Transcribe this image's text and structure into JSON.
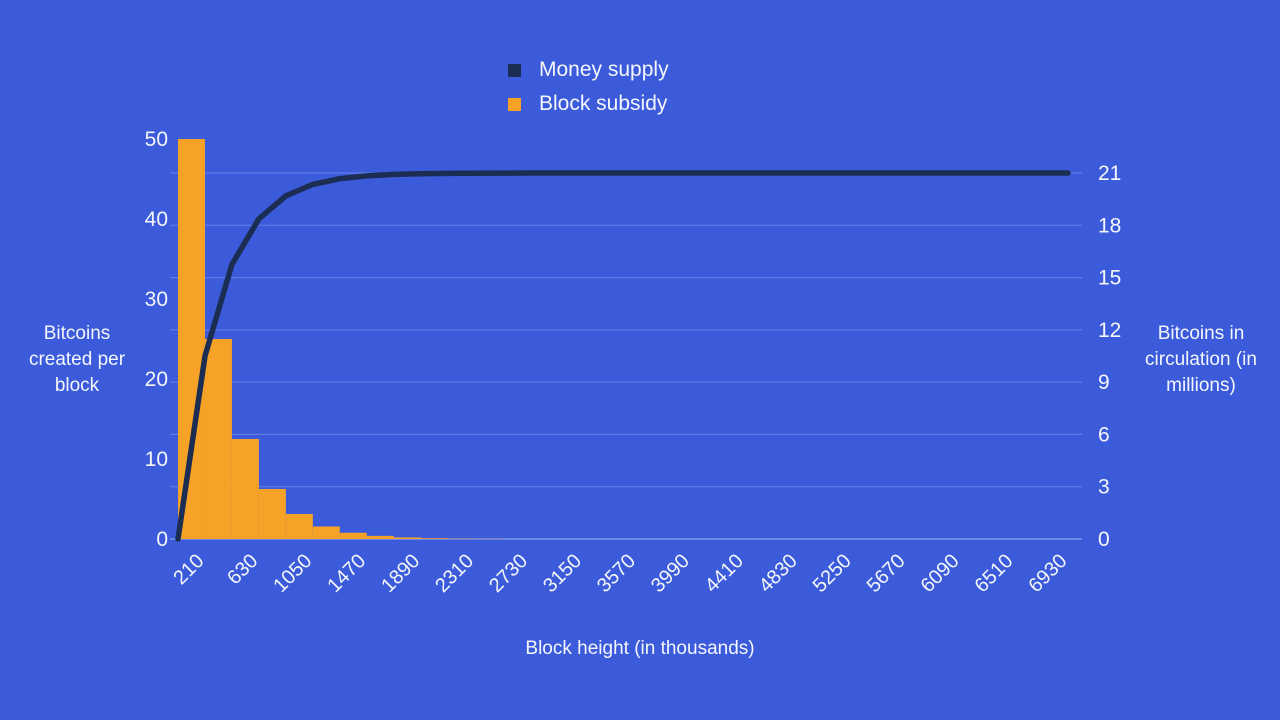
{
  "page": {
    "background": "#3B5BDB",
    "text_color": "#F4F6FA"
  },
  "legend": {
    "items": [
      {
        "label": "Money supply",
        "color": "#1B2D52"
      },
      {
        "label": "Block subsidy",
        "color": "#F6A226"
      }
    ]
  },
  "axes": {
    "left_title": "Bitcoins created per block",
    "right_title": "Bitcoins in circulation (in millions)",
    "x_title": "Block height (in thousands)"
  },
  "chart_data": {
    "type": "combo",
    "title": "",
    "x_axis": {
      "label": "Block height (in thousands)",
      "range": [
        0,
        6930
      ],
      "ticks": [
        210,
        630,
        1050,
        1470,
        1890,
        2310,
        2730,
        3150,
        3570,
        3990,
        4410,
        4830,
        5250,
        5670,
        6090,
        6510,
        6930
      ]
    },
    "left_axis": {
      "label": "Bitcoins created per block",
      "range": [
        0,
        50
      ],
      "ticks": [
        0,
        10,
        20,
        30,
        40,
        50
      ]
    },
    "right_axis": {
      "label": "Bitcoins in circulation (in millions)",
      "range": [
        0,
        21
      ],
      "ticks": [
        0,
        3,
        6,
        9,
        12,
        15,
        18,
        21
      ]
    },
    "grid": {
      "horizontal": true,
      "color": "rgba(244,246,250,0.25)",
      "baseline_color": "rgba(244,246,250,0.55)"
    },
    "legend_position": "top-center",
    "series": [
      {
        "name": "Block subsidy",
        "type": "bar",
        "axis": "left",
        "color": "#F6A226",
        "era_width_thousands": 210,
        "values": [
          50,
          25,
          12.5,
          6.25,
          3.125,
          1.5625,
          0.78125,
          0.390625,
          0.195313,
          0.097656,
          0.048828,
          0.024414,
          0.012207,
          0.006104,
          0.003052,
          0.001526,
          0.000763,
          0.000381,
          0.000191,
          9.5e-05,
          4.8e-05,
          2.4e-05,
          1.2e-05,
          6e-06,
          3e-06,
          2e-06,
          1e-06,
          0,
          0,
          0,
          0,
          0,
          0
        ]
      },
      {
        "name": "Money supply",
        "type": "line",
        "axis": "right",
        "color": "#1B2D52",
        "stroke_width": 5.5,
        "points": [
          [
            0,
            0
          ],
          [
            210,
            10.5
          ],
          [
            420,
            15.75
          ],
          [
            630,
            18.375
          ],
          [
            840,
            19.6875
          ],
          [
            1050,
            20.34375
          ],
          [
            1260,
            20.671875
          ],
          [
            1470,
            20.835938
          ],
          [
            1680,
            20.917969
          ],
          [
            1890,
            20.958984
          ],
          [
            2100,
            20.979492
          ],
          [
            2310,
            20.989746
          ],
          [
            2520,
            20.994873
          ],
          [
            2730,
            20.997437
          ],
          [
            2940,
            20.998718
          ],
          [
            3150,
            20.999359
          ],
          [
            3360,
            20.99968
          ],
          [
            3570,
            20.99984
          ],
          [
            3780,
            20.99992
          ],
          [
            3990,
            20.99996
          ],
          [
            4200,
            20.99998
          ],
          [
            4410,
            20.99999
          ],
          [
            4620,
            20.999995
          ],
          [
            4830,
            20.999998
          ],
          [
            5040,
            20.999999
          ],
          [
            5250,
            21
          ],
          [
            5460,
            21
          ],
          [
            5670,
            21
          ],
          [
            5880,
            21
          ],
          [
            6090,
            21
          ],
          [
            6300,
            21
          ],
          [
            6510,
            21
          ],
          [
            6720,
            21
          ],
          [
            6930,
            21
          ]
        ]
      }
    ]
  }
}
